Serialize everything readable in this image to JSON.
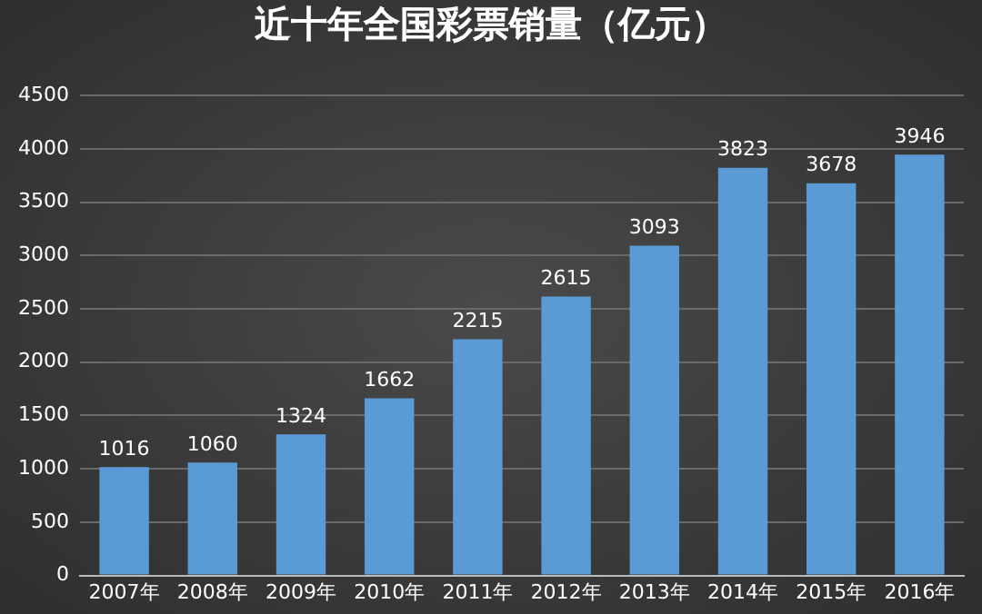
{
  "chart_data": {
    "type": "bar",
    "title": "近十年全国彩票销量（亿元）",
    "categories": [
      "2007年",
      "2008年",
      "2009年",
      "2010年",
      "2011年",
      "2012年",
      "2013年",
      "2014年",
      "2015年",
      "2016年"
    ],
    "values": [
      1016,
      1060,
      1324,
      1662,
      2215,
      2615,
      3093,
      3823,
      3678,
      3946
    ],
    "color": "#5b9bd5",
    "ylim": [
      0,
      4500
    ],
    "yticks": [
      0,
      500,
      1000,
      1500,
      2000,
      2500,
      3000,
      3500,
      4000,
      4500
    ],
    "grid": "y",
    "legend": false,
    "data_labels": true
  }
}
